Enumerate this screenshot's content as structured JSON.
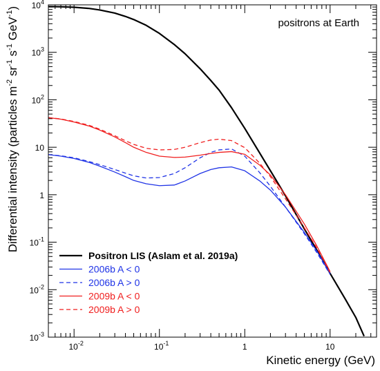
{
  "chart_data": {
    "type": "line",
    "xlabel": "Kinetic energy (GeV)",
    "ylabel": "Differential intensity (particles m^-2 sr^-1 s^-1 GeV^-1)",
    "ylabel_parts": [
      "Differential intensity (particles m",
      "-2",
      " sr",
      "-1",
      " s",
      "-1",
      " GeV",
      "-1",
      ")"
    ],
    "annotation": "positrons at Earth",
    "xscale": "log",
    "yscale": "log",
    "xlim": [
      0.005,
      35
    ],
    "ylim": [
      0.001,
      10000
    ],
    "grid": false,
    "legend_position": "bottom-left",
    "x_ticks": [
      {
        "value": 0.01,
        "base": "10",
        "exp": "-2"
      },
      {
        "value": 0.1,
        "base": "10",
        "exp": "-1"
      },
      {
        "value": 1,
        "base": "1",
        "exp": ""
      },
      {
        "value": 10,
        "base": "10",
        "exp": ""
      }
    ],
    "y_ticks": [
      {
        "value": 0.001,
        "base": "10",
        "exp": "-3"
      },
      {
        "value": 0.01,
        "base": "10",
        "exp": "-2"
      },
      {
        "value": 0.1,
        "base": "10",
        "exp": "-1"
      },
      {
        "value": 1,
        "base": "1",
        "exp": ""
      },
      {
        "value": 10,
        "base": "10",
        "exp": ""
      },
      {
        "value": 100,
        "base": "10",
        "exp": "2"
      },
      {
        "value": 1000,
        "base": "10",
        "exp": "3"
      },
      {
        "value": 10000,
        "base": "10",
        "exp": "4"
      }
    ],
    "series": [
      {
        "name": "Positron LIS (Aslam et al. 2019a)",
        "color": "#000000",
        "dash": "solid",
        "bold": true,
        "x": [
          0.005,
          0.007,
          0.01,
          0.015,
          0.02,
          0.03,
          0.04,
          0.05,
          0.07,
          0.1,
          0.15,
          0.2,
          0.3,
          0.4,
          0.5,
          0.7,
          1,
          1.5,
          2,
          3,
          5,
          7,
          10,
          15,
          20,
          25
        ],
        "y": [
          9200,
          9100,
          8900,
          8400,
          7800,
          6700,
          5700,
          4900,
          3700,
          2500,
          1450,
          930,
          450,
          255,
          160,
          68,
          25,
          7.5,
          3.2,
          0.95,
          0.19,
          0.068,
          0.022,
          0.0064,
          0.0026,
          0.00105
        ]
      },
      {
        "name": "2006b A < 0",
        "color": "#1f33e6",
        "dash": "solid",
        "bold": false,
        "x": [
          0.005,
          0.007,
          0.01,
          0.015,
          0.02,
          0.03,
          0.04,
          0.05,
          0.07,
          0.1,
          0.15,
          0.2,
          0.3,
          0.4,
          0.5,
          0.7,
          1,
          1.5,
          2,
          3,
          5,
          7,
          10
        ],
        "y": [
          7.0,
          6.5,
          5.8,
          4.8,
          4.0,
          3.0,
          2.4,
          2.0,
          1.7,
          1.55,
          1.6,
          1.95,
          2.8,
          3.4,
          3.7,
          3.85,
          3.2,
          1.95,
          1.25,
          0.55,
          0.16,
          0.065,
          0.022
        ]
      },
      {
        "name": "2006b A > 0",
        "color": "#1f33e6",
        "dash": "dashed",
        "bold": false,
        "x": [
          0.005,
          0.007,
          0.01,
          0.015,
          0.02,
          0.03,
          0.04,
          0.05,
          0.07,
          0.1,
          0.15,
          0.2,
          0.3,
          0.4,
          0.5,
          0.7,
          1,
          1.5,
          2,
          3,
          5,
          7,
          10
        ],
        "y": [
          7.0,
          6.6,
          6.0,
          5.0,
          4.3,
          3.4,
          2.85,
          2.5,
          2.25,
          2.3,
          2.8,
          3.7,
          6.0,
          7.8,
          8.8,
          9.2,
          6.5,
          2.9,
          1.5,
          0.55,
          0.15,
          0.06,
          0.021
        ]
      },
      {
        "name": "2009b A < 0",
        "color": "#f01e1e",
        "dash": "solid",
        "bold": false,
        "x": [
          0.005,
          0.007,
          0.01,
          0.015,
          0.02,
          0.03,
          0.04,
          0.05,
          0.07,
          0.1,
          0.15,
          0.2,
          0.3,
          0.4,
          0.5,
          0.7,
          1,
          1.5,
          2,
          3,
          5,
          7,
          10
        ],
        "y": [
          42,
          39,
          34,
          28,
          23,
          16.5,
          12.5,
          10,
          7.8,
          6.5,
          6.1,
          6.2,
          6.8,
          7.4,
          7.8,
          8.1,
          7.1,
          4.2,
          2.6,
          1.0,
          0.24,
          0.083,
          0.024
        ]
      },
      {
        "name": "2009b A > 0",
        "color": "#f01e1e",
        "dash": "dashed",
        "bold": false,
        "x": [
          0.005,
          0.007,
          0.01,
          0.015,
          0.02,
          0.03,
          0.04,
          0.05,
          0.07,
          0.1,
          0.15,
          0.2,
          0.3,
          0.4,
          0.5,
          0.7,
          1,
          1.5,
          2,
          3,
          5,
          7,
          10
        ],
        "y": [
          42,
          39.5,
          35,
          29,
          24,
          17.5,
          13.7,
          11.5,
          9.5,
          8.8,
          9.0,
          10,
          12.5,
          14.2,
          14.8,
          13.8,
          9.8,
          4.6,
          2.4,
          0.82,
          0.2,
          0.075,
          0.023
        ]
      }
    ]
  }
}
